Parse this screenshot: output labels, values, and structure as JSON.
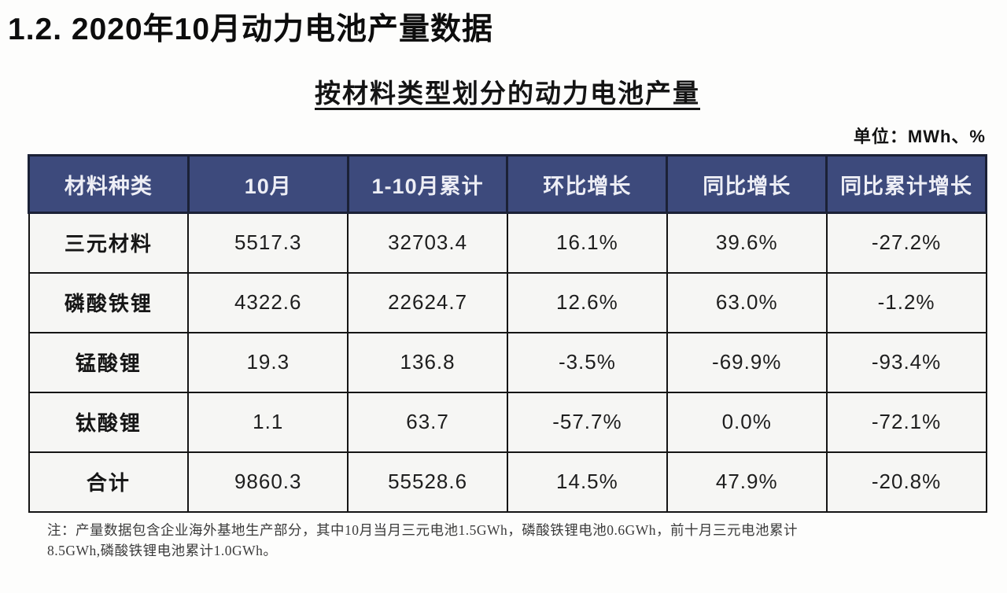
{
  "page": {
    "title": "1.2.  2020年10月动力电池产量数据",
    "subtitle": "按材料类型划分的动力电池产量",
    "unit_label": "单位：MWh、%",
    "note_line1": "注：产量数据包含企业海外基地生产部分，其中10月当月三元电池1.5GWh，磷酸铁锂电池0.6GWh，前十月三元电池累计",
    "note_line2": "8.5GWh,磷酸铁锂电池累计1.0GWh。"
  },
  "colors": {
    "header_bg": "#3d4a7c",
    "header_text": "#edeef5",
    "cell_bg": "#f6f6f4",
    "border": "#151515",
    "page_bg": "#fdfdfc"
  },
  "chart_data": {
    "type": "table",
    "title": "按材料类型划分的动力电池产量",
    "unit": "MWh、%",
    "columns": [
      "材料种类",
      "10月",
      "1-10月累计",
      "环比增长",
      "同比增长",
      "同比累计增长"
    ],
    "rows": [
      [
        "三元材料",
        "5517.3",
        "32703.4",
        "16.1%",
        "39.6%",
        "-27.2%"
      ],
      [
        "磷酸铁锂",
        "4322.6",
        "22624.7",
        "12.6%",
        "63.0%",
        "-1.2%"
      ],
      [
        "锰酸锂",
        "19.3",
        "136.8",
        "-3.5%",
        "-69.9%",
        "-93.4%"
      ],
      [
        "钛酸锂",
        "1.1",
        "63.7",
        "-57.7%",
        "0.0%",
        "-72.1%"
      ],
      [
        "合计",
        "9860.3",
        "55528.6",
        "14.5%",
        "47.9%",
        "-20.8%"
      ]
    ]
  }
}
